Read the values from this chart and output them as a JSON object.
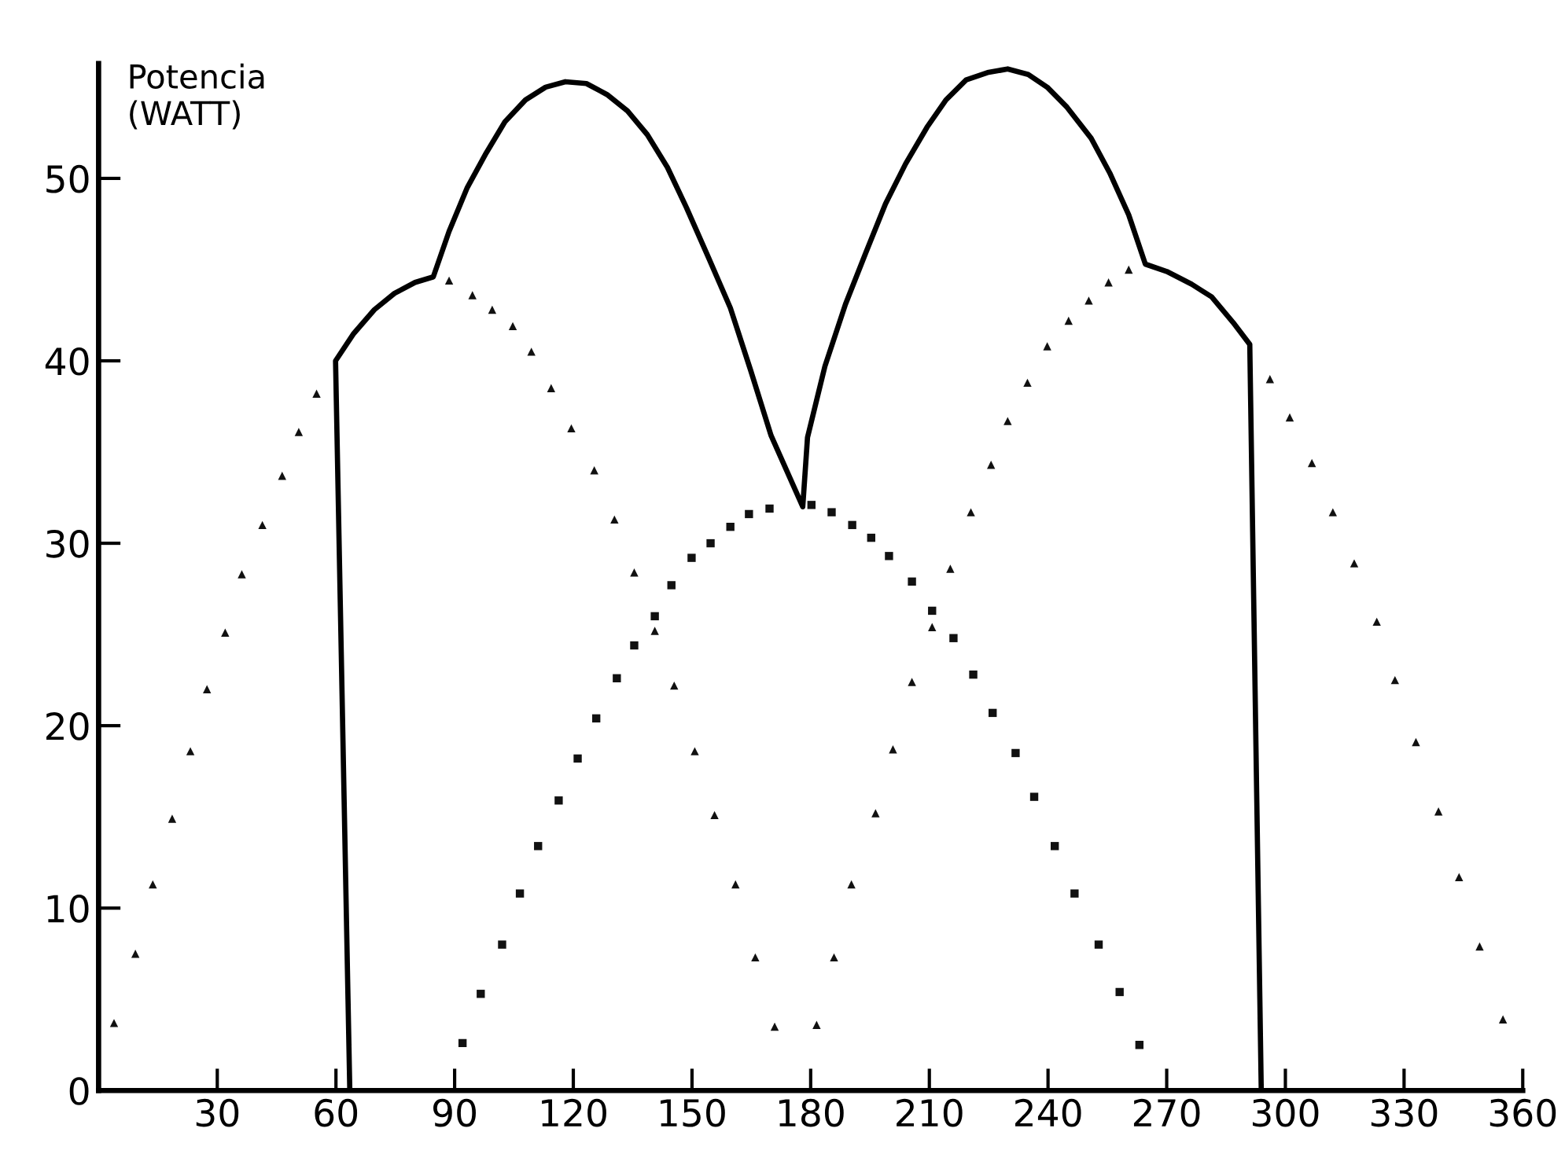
{
  "chart_data": {
    "type": "scatter",
    "ylabel": "Potencia\n(WATT)",
    "xlim": [
      0,
      360
    ],
    "ylim": [
      0,
      56.3
    ],
    "xticks": [
      30,
      60,
      90,
      120,
      150,
      180,
      210,
      240,
      270,
      300,
      330,
      360
    ],
    "yticks": [
      0,
      10,
      20,
      30,
      40,
      50
    ],
    "grid": false,
    "legend": false,
    "series": [
      {
        "marker": "triangle",
        "color": "#111111",
        "x": [
          3.9,
          9.3,
          13.7,
          18.6,
          23.2,
          27.4,
          32,
          36.2,
          41.4,
          46.4,
          50.6,
          55.1,
          88.6,
          94.5,
          99.5,
          104.7,
          109.4,
          114.4,
          119.5,
          125.3,
          130.4,
          135.4,
          140.6,
          145.5,
          150.7,
          155.7,
          161,
          166,
          170.9
        ],
        "values": [
          3.7,
          7.5,
          11.3,
          14.9,
          18.6,
          22.0,
          25.1,
          28.3,
          31.0,
          33.7,
          36.1,
          38.2,
          44.4,
          43.6,
          42.8,
          41.9,
          40.5,
          38.5,
          36.3,
          34.0,
          31.3,
          28.4,
          25.2,
          22.2,
          18.6,
          15.1,
          11.3,
          7.3,
          3.5
        ]
      },
      {
        "marker": "square",
        "color": "#111111",
        "x": [
          92,
          96.6,
          102,
          106.5,
          111.1,
          116.3,
          121.1,
          125.8,
          131,
          135.4,
          140.6,
          144.8,
          149.9,
          154.7,
          159.7,
          164.4,
          169.6,
          180.2,
          185.3,
          190.5,
          195.3,
          199.8,
          205.6,
          210.7,
          216.1,
          221.1,
          226,
          231.8,
          236.5,
          241.7,
          246.7,
          252.8,
          258.1,
          263.1
        ],
        "values": [
          2.6,
          5.3,
          8.0,
          10.8,
          13.4,
          15.9,
          18.2,
          20.4,
          22.6,
          24.4,
          26.0,
          27.7,
          29.2,
          30.0,
          30.9,
          31.6,
          31.9,
          32.1,
          31.7,
          31.0,
          30.3,
          29.3,
          27.9,
          26.3,
          24.8,
          22.8,
          20.7,
          18.5,
          16.1,
          13.4,
          10.8,
          8.0,
          5.4,
          2.5
        ]
      },
      {
        "marker": "triangle",
        "color": "#111111",
        "x": [
          181.5,
          185.9,
          190.3,
          196.4,
          200.8,
          205.6,
          210.7,
          215.3,
          220.5,
          225.6,
          229.8,
          234.8,
          239.8,
          245.2,
          250.3,
          255.3,
          260.4,
          296.1,
          301.1,
          306.7,
          312,
          317.4,
          323.1,
          327.7,
          333,
          338.7,
          343.9,
          349.1,
          355
        ],
        "values": [
          3.6,
          7.3,
          11.3,
          15.2,
          18.7,
          22.4,
          25.4,
          28.6,
          31.7,
          34.3,
          36.7,
          38.8,
          40.8,
          42.2,
          43.3,
          44.3,
          45.0,
          39.0,
          36.9,
          34.4,
          31.7,
          28.9,
          25.7,
          22.5,
          19.1,
          15.3,
          11.7,
          7.9,
          3.9
        ]
      },
      {
        "type": "line",
        "line_style": "solid",
        "marker": "none",
        "color": "#000000",
        "x": [
          63.5,
          59.9,
          64.5,
          69.7,
          74.8,
          80,
          84.6,
          88.6,
          93.2,
          98,
          102.7,
          107.9,
          113,
          118,
          123.3,
          128.5,
          133.7,
          138.7,
          143.8,
          148.6,
          154.3,
          159.7,
          164.8,
          170,
          178,
          179.2,
          183.6,
          188.8,
          193.9,
          198.9,
          204,
          209.4,
          214.2,
          219.3,
          224.7,
          229.8,
          235,
          239.8,
          244.8,
          250.9,
          255.6,
          260.4,
          264.6,
          270,
          276.3,
          281.4,
          286.8,
          291,
          293.9
        ],
        "values": [
          0,
          40.0,
          41.5,
          42.8,
          43.7,
          44.3,
          44.6,
          47.1,
          49.5,
          51.4,
          53.1,
          54.3,
          55.0,
          55.3,
          55.2,
          54.6,
          53.7,
          52.4,
          50.6,
          48.4,
          45.6,
          42.9,
          39.5,
          35.9,
          32.0,
          35.8,
          39.7,
          43.1,
          45.9,
          48.6,
          50.8,
          52.8,
          54.3,
          55.4,
          55.8,
          56.0,
          55.7,
          55.0,
          53.9,
          52.2,
          50.3,
          48.0,
          45.3,
          44.9,
          44.2,
          43.5,
          42.1,
          40.9,
          0
        ]
      }
    ]
  }
}
